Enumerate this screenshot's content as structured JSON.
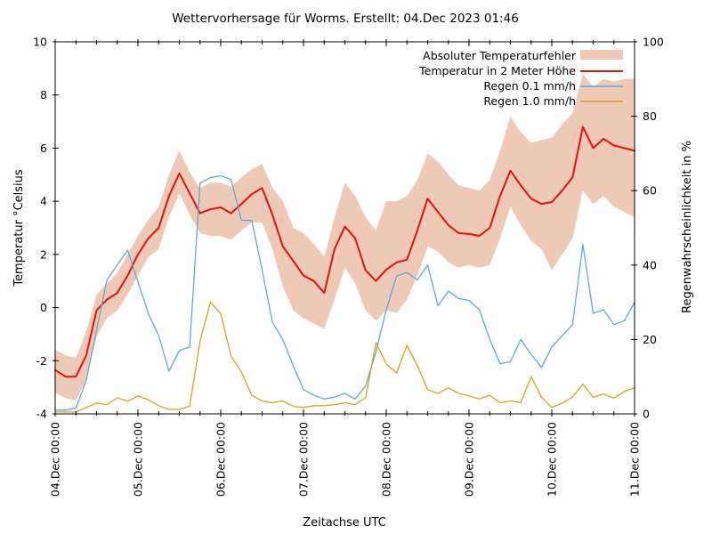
{
  "colors": {
    "background": "#ffffff",
    "axis": "#000000",
    "error_band": "#eec9b6",
    "temperature_line": "#e3120b",
    "rain01_line": "#5fa8dc",
    "rain10_line": "#dda01e"
  },
  "chart_data": {
    "type": "line",
    "title": "Wettervorhersage für Worms. Erstellt: 04.Dec 2023 01:46",
    "x_label": "Zeitachse UTC",
    "x_range_hours": [
      0,
      168
    ],
    "sampling_step_hours": 3,
    "x_ticks": {
      "labels": [
        "04.Dec 00:00",
        "05.Dec 00:00",
        "06.Dec 00:00",
        "07.Dec 00:00",
        "08.Dec 00:00",
        "09.Dec 00:00",
        "10.Dec 00:00",
        "11.Dec 00:00"
      ],
      "major_step_hours": 24,
      "minor_step_hours": 6
    },
    "y_left": {
      "label": "Temperatur °Celsius",
      "range": [
        -4,
        10
      ],
      "ticks": [
        10,
        8,
        6,
        4,
        2,
        0,
        -2,
        -4
      ]
    },
    "y_right": {
      "label": "Regenwahrscheinlichkeit in %",
      "range": [
        0,
        100
      ],
      "ticks": [
        100,
        80,
        60,
        40,
        20,
        0
      ]
    },
    "legend_position": "top-right-inside",
    "series": [
      {
        "name": "Absoluter Temperaturfehler",
        "kind": "band",
        "axis": "left",
        "color": "#eec9b6",
        "upper": [
          -1.6,
          -1.8,
          -1.9,
          -0.9,
          0.5,
          0.9,
          1.3,
          2.0,
          2.7,
          3.3,
          3.8,
          5.0,
          5.9,
          5.1,
          4.5,
          4.7,
          4.7,
          4.55,
          4.9,
          5.2,
          5.4,
          4.5,
          4.0,
          3.0,
          2.8,
          2.4,
          1.9,
          3.4,
          4.7,
          4.2,
          3.4,
          2.9,
          4.0,
          4.0,
          4.2,
          4.8,
          5.8,
          5.5,
          5.0,
          4.6,
          4.5,
          4.4,
          4.8,
          5.9,
          7.2,
          6.6,
          6.2,
          6.3,
          6.4,
          6.9,
          7.3,
          8.8,
          8.3,
          8.6,
          8.5,
          8.6,
          8.6
        ],
        "lower": [
          -3.2,
          -3.4,
          -3.5,
          -2.7,
          -1.1,
          -0.4,
          -0.1,
          0.5,
          1.2,
          1.9,
          2.2,
          3.4,
          4.3,
          3.5,
          2.8,
          2.7,
          2.7,
          2.55,
          2.9,
          3.2,
          3.2,
          2.2,
          0.8,
          -0.1,
          -0.4,
          -0.6,
          -0.8,
          0.3,
          1.5,
          0.9,
          -0.1,
          -0.5,
          -0.1,
          -0.2,
          0.3,
          1.2,
          2.3,
          2.1,
          1.7,
          1.5,
          1.6,
          1.5,
          1.6,
          2.6,
          3.8,
          3.1,
          2.5,
          2.2,
          1.4,
          2.0,
          2.6,
          4.4,
          3.9,
          4.2,
          3.8,
          3.6,
          3.4
        ]
      },
      {
        "name": "Temperatur in 2 Meter Höhe",
        "kind": "line",
        "axis": "left",
        "color": "#e3120b",
        "width": 2,
        "values": [
          -2.35,
          -2.6,
          -2.6,
          -1.8,
          -0.1,
          0.3,
          0.55,
          1.2,
          2.0,
          2.6,
          3.0,
          4.2,
          5.05,
          4.3,
          3.55,
          3.7,
          3.77,
          3.55,
          3.9,
          4.27,
          4.5,
          3.5,
          2.3,
          1.76,
          1.2,
          1.0,
          0.55,
          2.2,
          3.05,
          2.6,
          1.4,
          1.0,
          1.43,
          1.7,
          1.8,
          2.9,
          4.1,
          3.6,
          3.1,
          2.8,
          2.77,
          2.7,
          3.0,
          4.2,
          5.15,
          4.6,
          4.1,
          3.9,
          3.97,
          4.4,
          4.9,
          6.8,
          6.0,
          6.35,
          6.1,
          6.0,
          5.9
        ]
      },
      {
        "name": "Regen 0.1 mm/h",
        "kind": "line",
        "axis": "right",
        "color": "#5fa8dc",
        "width": 1.3,
        "values": [
          1,
          1,
          1.5,
          9,
          22.5,
          36,
          40,
          44,
          35.5,
          27,
          21,
          11.5,
          17,
          18,
          62,
          63.5,
          64,
          63,
          52,
          52,
          38.7,
          24.6,
          20,
          13,
          6.5,
          5,
          4,
          4.5,
          5.5,
          4,
          7.5,
          16.7,
          28,
          37,
          38,
          36,
          40,
          29,
          33,
          31,
          30.5,
          28,
          20,
          13.5,
          14,
          20,
          16,
          12.5,
          18,
          21,
          24,
          45.5,
          27,
          28,
          24,
          25,
          30
        ]
      },
      {
        "name": "Regen 1.0 mm/h",
        "kind": "line",
        "axis": "right",
        "color": "#dda01e",
        "width": 1.3,
        "values": [
          0.5,
          0.5,
          0.5,
          1.7,
          2.9,
          2.5,
          4.3,
          3.4,
          4.8,
          3.8,
          2.2,
          1.2,
          1.2,
          2.0,
          19.6,
          30,
          27,
          15.5,
          11.2,
          5,
          3.5,
          3,
          3.5,
          2,
          1.7,
          2.2,
          2.2,
          2.5,
          3.0,
          2.5,
          4.4,
          19.1,
          13.4,
          11,
          18.4,
          13,
          6.5,
          5.5,
          7,
          5.5,
          4.8,
          4,
          5,
          3,
          3.5,
          3,
          10,
          4.5,
          1.7,
          2.9,
          4.5,
          8,
          4.5,
          5.3,
          4.2,
          6,
          7
        ]
      }
    ]
  }
}
